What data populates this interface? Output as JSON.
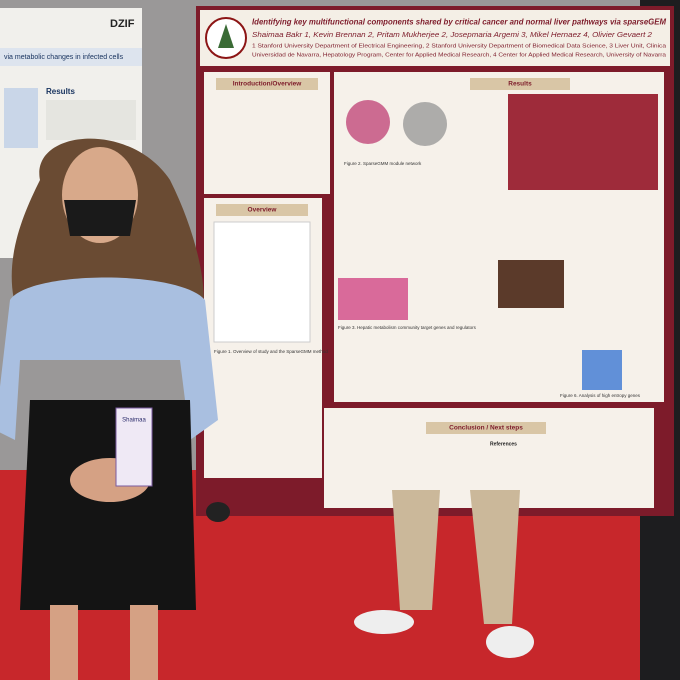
{
  "main_poster": {
    "title": "Identifying key multifunctional components shared by critical cancer and normal liver pathways via sparseGEM",
    "authors": "Shaimaa Bakr 1, Kevin Brennan 2, Pritam Mukherjee 2, Josepmaria Argemi 3, Mikel Hernaez 4, Olivier Gevaert 2",
    "affiliations": [
      "1 Stanford University Department of Electrical Engineering, 2 Stanford University Department of Biomedical Data Science, 3 Liver Unit, Clinica",
      "Universidad de Navarra, Hepatology Program, Center for Applied Medical Research, 4 Center for Applied Medical Research, University of Navarra"
    ],
    "sections": {
      "intro": "Introduction/Overview",
      "overview": "Overview",
      "results": "Results",
      "conclusion": "Conclusion / Next steps"
    },
    "captions": [
      "Figure 2. SparseGMM module network",
      "Figure 1. Overview of study and the SparseGMM method",
      "Figure 3. Hepatic metabolism community target genes and regulators",
      "Figure 6. Analysis of high entropy genes"
    ],
    "references": "References"
  },
  "left_poster": {
    "logo": "DZIF",
    "subtitle": "via metabolic changes in infected cells",
    "heading": "Results"
  },
  "badge": {
    "name": "Shaimaa"
  }
}
